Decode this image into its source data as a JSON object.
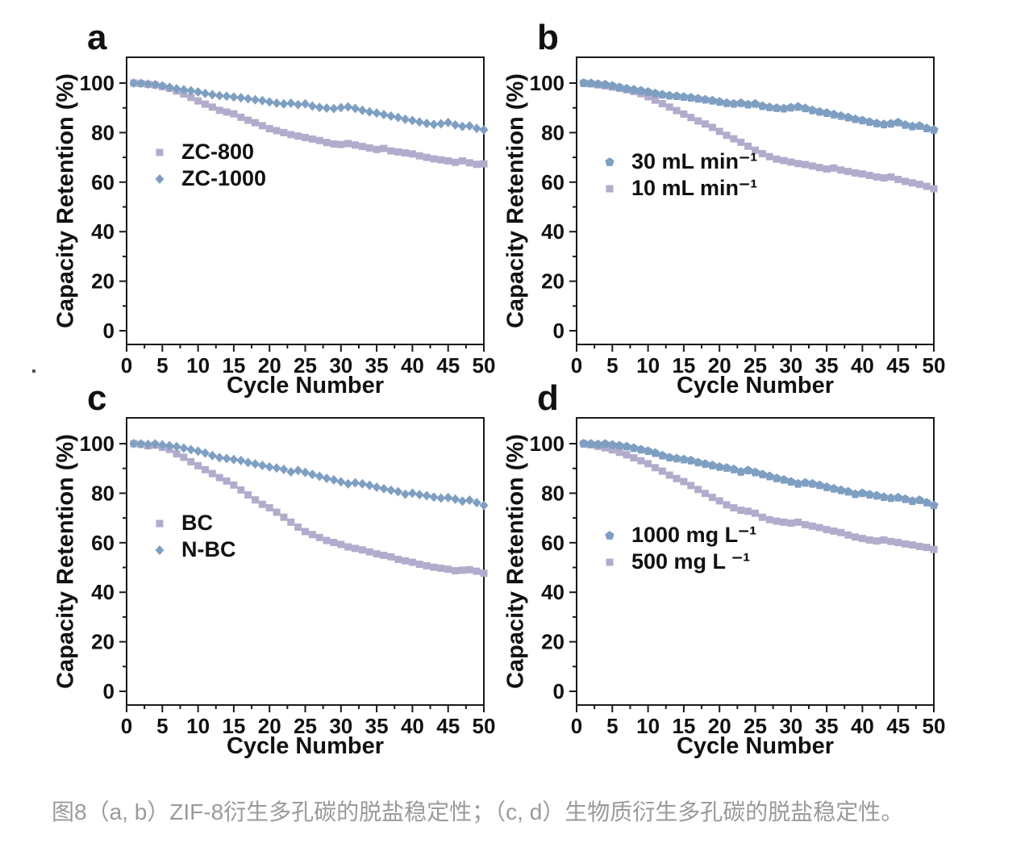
{
  "figure": {
    "caption": "图8（a, b）ZIF-8衍生多孔碳的脱盐稳定性；（c, d）生物质衍生多孔碳的脱盐稳定性。",
    "caption_color": "#9a9a9a"
  },
  "colors": {
    "axis": "#1a1a1a",
    "blue": "#7e9fc2",
    "purple": "#b2accc"
  },
  "chart_data": [
    {
      "id": "a",
      "type": "scatter",
      "panel_label": "a",
      "xlabel": "Cycle Number",
      "ylabel": "Capacity Retention (%)",
      "xlim": [
        0,
        50
      ],
      "ylim": [
        0,
        100
      ],
      "xticks": [
        0,
        5,
        10,
        15,
        20,
        25,
        30,
        35,
        40,
        45,
        50
      ],
      "yticks": [
        0,
        20,
        40,
        60,
        80,
        100
      ],
      "x_start": 1,
      "x_step": 1,
      "legend_position": "inside-left-middle",
      "grid": false,
      "series": [
        {
          "name": "ZC-800",
          "marker": "square",
          "color": "#b2accc",
          "values": [
            100,
            99.8,
            99.5,
            99.2,
            98.6,
            97.9,
            96.8,
            95.6,
            94.2,
            92.8,
            91.5,
            90.3,
            89.0,
            88.3,
            87.6,
            86.2,
            85.0,
            84.0,
            82.8,
            81.6,
            80.8,
            80.0,
            79.2,
            78.6,
            78.0,
            77.4,
            76.8,
            76.0,
            75.4,
            75.2,
            75.6,
            75.0,
            74.4,
            73.8,
            73.2,
            73.6,
            72.6,
            72.2,
            71.8,
            71.4,
            70.6,
            70.0,
            69.4,
            69.0,
            68.6,
            68.0,
            68.6,
            67.8,
            67.2,
            67.4
          ]
        },
        {
          "name": "ZC-1000",
          "marker": "diamond",
          "color": "#7e9fc2",
          "values": [
            100,
            99.9,
            99.6,
            99.4,
            98.9,
            98.3,
            97.7,
            97.3,
            96.9,
            96.4,
            95.8,
            95.3,
            94.9,
            94.7,
            94.4,
            94.1,
            93.7,
            93.3,
            92.9,
            92.4,
            91.9,
            91.6,
            91.9,
            91.3,
            91.6,
            90.7,
            90.2,
            89.9,
            89.7,
            90.1,
            90.4,
            89.8,
            89.0,
            88.4,
            87.9,
            87.3,
            86.7,
            86.1,
            85.4,
            84.9,
            84.3,
            83.7,
            83.3,
            83.6,
            84.1,
            83.1,
            82.5,
            82.7,
            81.7,
            81.1
          ]
        }
      ]
    },
    {
      "id": "b",
      "type": "scatter",
      "panel_label": "b",
      "xlabel": "Cycle Number",
      "ylabel": "Capacity Retention (%)",
      "xlim": [
        0,
        50
      ],
      "ylim": [
        0,
        100
      ],
      "xticks": [
        0,
        5,
        10,
        15,
        20,
        25,
        30,
        35,
        40,
        45,
        50
      ],
      "yticks": [
        0,
        20,
        40,
        60,
        80,
        100
      ],
      "x_start": 1,
      "x_step": 1,
      "legend_position": "inside-left-middle",
      "grid": false,
      "series": [
        {
          "name": "30 mL min⁻¹",
          "marker": "pentagon",
          "color": "#7e9fc2",
          "values": [
            100,
            99.9,
            99.6,
            99.4,
            98.9,
            98.3,
            97.7,
            97.3,
            96.9,
            96.4,
            95.8,
            95.3,
            94.9,
            94.7,
            94.4,
            94.1,
            93.7,
            93.3,
            92.9,
            92.4,
            91.9,
            91.6,
            91.9,
            91.3,
            91.6,
            90.7,
            90.2,
            89.9,
            89.7,
            90.1,
            90.4,
            89.8,
            89.0,
            88.4,
            87.9,
            87.3,
            86.7,
            86.1,
            85.4,
            84.9,
            84.3,
            83.7,
            83.3,
            83.6,
            84.1,
            83.1,
            82.5,
            82.7,
            81.7,
            81.1
          ]
        },
        {
          "name": "10 mL min⁻¹",
          "marker": "square",
          "color": "#b2accc",
          "values": [
            100,
            99.7,
            99.3,
            98.9,
            98.4,
            97.9,
            97.3,
            96.6,
            95.7,
            94.5,
            93.1,
            91.7,
            90.3,
            88.9,
            87.5,
            86.1,
            84.7,
            83.5,
            82.1,
            80.5,
            78.9,
            77.5,
            76.1,
            74.5,
            72.9,
            71.5,
            70.3,
            69.3,
            68.7,
            68.1,
            67.5,
            67.1,
            66.5,
            65.9,
            65.3,
            65.7,
            64.9,
            64.3,
            63.7,
            63.3,
            62.7,
            62.1,
            61.7,
            62.1,
            61.1,
            60.3,
            59.7,
            59.1,
            58.3,
            57.3
          ]
        }
      ]
    },
    {
      "id": "c",
      "type": "scatter",
      "panel_label": "c",
      "xlabel": "Cycle Number",
      "ylabel": "Capacity Retention (%)",
      "xlim": [
        0,
        50
      ],
      "ylim": [
        0,
        100
      ],
      "xticks": [
        0,
        5,
        10,
        15,
        20,
        25,
        30,
        35,
        40,
        45,
        50
      ],
      "yticks": [
        0,
        20,
        40,
        60,
        80,
        100
      ],
      "x_start": 1,
      "x_step": 1,
      "legend_position": "inside-left-middle",
      "grid": false,
      "series": [
        {
          "name": "BC",
          "marker": "square",
          "color": "#b2accc",
          "values": [
            100,
            99.7,
            99.1,
            99.4,
            98.5,
            97.7,
            95.9,
            94.5,
            92.7,
            91.1,
            89.5,
            87.9,
            86.3,
            84.9,
            83.3,
            81.3,
            79.3,
            77.3,
            75.5,
            74.1,
            72.3,
            70.3,
            68.3,
            66.3,
            64.5,
            63.3,
            62.1,
            60.9,
            60.1,
            59.3,
            58.3,
            57.7,
            57.1,
            56.3,
            55.5,
            54.9,
            54.3,
            53.3,
            52.7,
            52.1,
            51.3,
            50.7,
            50.1,
            49.7,
            49.3,
            48.7,
            48.9,
            49.1,
            48.5,
            47.7
          ]
        },
        {
          "name": "N-BC",
          "marker": "diamond",
          "color": "#7e9fc2",
          "values": [
            100,
            99.9,
            99.7,
            99.9,
            99.5,
            99.2,
            98.8,
            98.2,
            97.6,
            97.0,
            96.2,
            95.2,
            94.4,
            94.0,
            93.6,
            93.2,
            92.4,
            91.8,
            91.2,
            90.6,
            90.2,
            89.6,
            88.6,
            89.2,
            88.4,
            87.6,
            86.8,
            86.0,
            85.4,
            84.6,
            83.8,
            84.2,
            83.8,
            83.2,
            82.4,
            81.8,
            81.2,
            80.6,
            79.6,
            80.0,
            79.4,
            79.0,
            78.4,
            78.0,
            78.2,
            77.6,
            76.8,
            77.2,
            76.2,
            75.1
          ]
        }
      ]
    },
    {
      "id": "d",
      "type": "scatter",
      "panel_label": "d",
      "xlabel": "Cycle Number",
      "ylabel": "Capacity Retention (%)",
      "xlim": [
        0,
        50
      ],
      "ylim": [
        0,
        100
      ],
      "xticks": [
        0,
        5,
        10,
        15,
        20,
        25,
        30,
        35,
        40,
        45,
        50
      ],
      "yticks": [
        0,
        20,
        40,
        60,
        80,
        100
      ],
      "x_start": 1,
      "x_step": 1,
      "legend_position": "inside-left-middle",
      "grid": false,
      "series": [
        {
          "name": "1000 mg L⁻¹",
          "marker": "pentagon",
          "color": "#7e9fc2",
          "values": [
            100,
            99.9,
            99.7,
            99.9,
            99.5,
            99.2,
            98.8,
            98.2,
            97.6,
            97.0,
            96.2,
            95.2,
            94.4,
            94.0,
            93.6,
            93.2,
            92.4,
            91.8,
            91.2,
            90.6,
            90.2,
            89.6,
            88.6,
            89.2,
            88.4,
            87.6,
            86.8,
            86.0,
            85.4,
            84.6,
            83.8,
            84.2,
            83.8,
            83.2,
            82.4,
            81.8,
            81.2,
            80.6,
            79.6,
            80.0,
            79.4,
            79.0,
            78.4,
            78.0,
            78.2,
            77.6,
            76.8,
            77.2,
            76.2,
            75.1
          ]
        },
        {
          "name": "500 mg L ⁻¹",
          "marker": "square",
          "color": "#b2accc",
          "values": [
            100,
            99.5,
            98.9,
            98.3,
            97.5,
            96.5,
            95.5,
            94.3,
            93.1,
            91.9,
            90.3,
            88.9,
            87.3,
            85.9,
            84.7,
            83.1,
            81.5,
            79.9,
            78.3,
            76.9,
            75.3,
            74.1,
            73.1,
            72.7,
            71.9,
            70.3,
            69.3,
            68.7,
            68.3,
            67.9,
            68.3,
            67.3,
            66.7,
            66.1,
            65.3,
            64.7,
            64.1,
            63.1,
            62.3,
            61.7,
            61.1,
            60.7,
            61.1,
            60.5,
            60.1,
            59.5,
            59.1,
            58.5,
            58.1,
            57.3
          ]
        }
      ]
    }
  ]
}
